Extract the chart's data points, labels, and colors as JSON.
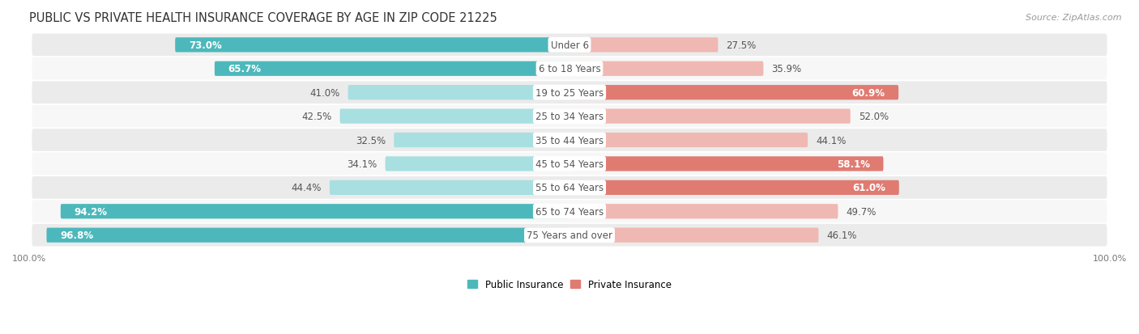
{
  "title": "PUBLIC VS PRIVATE HEALTH INSURANCE COVERAGE BY AGE IN ZIP CODE 21225",
  "source": "Source: ZipAtlas.com",
  "categories": [
    "Under 6",
    "6 to 18 Years",
    "19 to 25 Years",
    "25 to 34 Years",
    "35 to 44 Years",
    "45 to 54 Years",
    "55 to 64 Years",
    "65 to 74 Years",
    "75 Years and over"
  ],
  "public_values": [
    73.0,
    65.7,
    41.0,
    42.5,
    32.5,
    34.1,
    44.4,
    94.2,
    96.8
  ],
  "private_values": [
    27.5,
    35.9,
    60.9,
    52.0,
    44.1,
    58.1,
    61.0,
    49.7,
    46.1
  ],
  "public_color": "#4db8bb",
  "private_color": "#e07b72",
  "public_color_light": "#a8dfe0",
  "private_color_light": "#f0b8b3",
  "row_bg_odd": "#ebebeb",
  "row_bg_even": "#f7f7f7",
  "label_color_white": "#ffffff",
  "label_color_dark": "#555555",
  "center_label_color": "#555555",
  "max_value": 100.0,
  "figsize": [
    14.06,
    4.14
  ],
  "dpi": 100,
  "title_fontsize": 10.5,
  "label_fontsize": 8.5,
  "tick_fontsize": 8,
  "source_fontsize": 8,
  "legend_fontsize": 8.5
}
